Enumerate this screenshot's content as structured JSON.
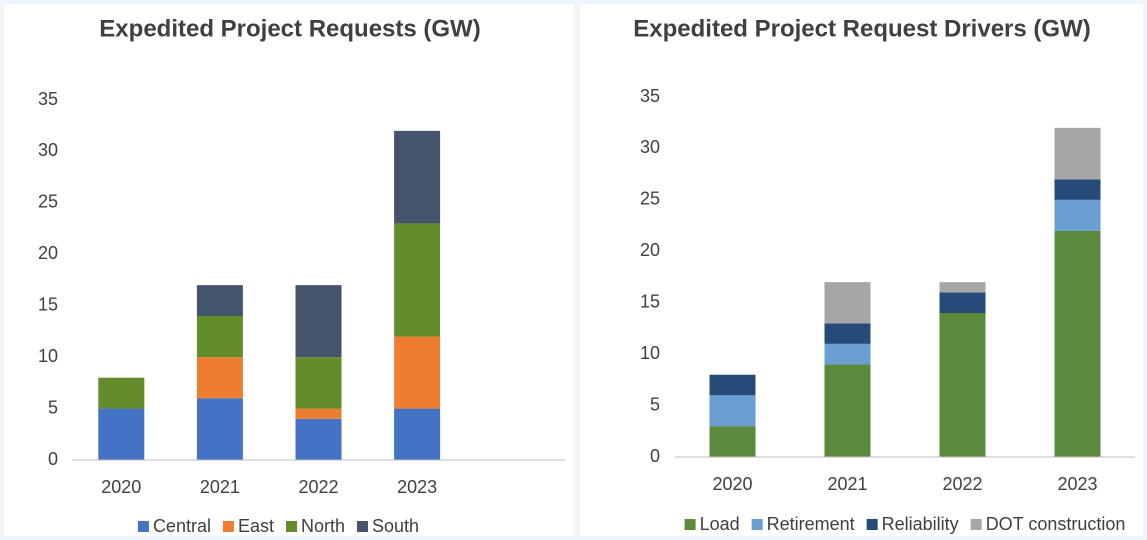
{
  "chart_data": [
    {
      "type": "bar",
      "stacked": true,
      "title": "Expedited Project Requests (GW)",
      "categories": [
        "2020",
        "2021",
        "2022",
        "2023",
        null
      ],
      "series": [
        {
          "name": "Central",
          "color": "#4472c4",
          "values": [
            5,
            6,
            4,
            5,
            null
          ]
        },
        {
          "name": "East",
          "color": "#ed7d31",
          "values": [
            0,
            4,
            1,
            7,
            null
          ]
        },
        {
          "name": "North",
          "color": "#638c2b",
          "values": [
            3,
            4,
            5,
            11,
            null
          ]
        },
        {
          "name": "South",
          "color": "#44546a",
          "values": [
            0,
            3,
            7,
            9,
            null
          ]
        }
      ],
      "ylim": [
        0,
        35
      ],
      "yticks": [
        0,
        5,
        10,
        15,
        20,
        25,
        30,
        35
      ],
      "grid": false,
      "legend": "bottom"
    },
    {
      "type": "bar",
      "stacked": true,
      "title": "Expedited Project Request Drivers (GW)",
      "categories": [
        "2020",
        "2021",
        "2022",
        "2023"
      ],
      "series": [
        {
          "name": "Load",
          "color": "#5b8a3c",
          "values": [
            3,
            9,
            14,
            22
          ]
        },
        {
          "name": "Retirement",
          "color": "#6a9fd4",
          "values": [
            3,
            2,
            0,
            3
          ]
        },
        {
          "name": "Reliability",
          "color": "#264b78",
          "values": [
            2,
            2,
            2,
            2
          ]
        },
        {
          "name": "DOT construction",
          "color": "#a6a6a6",
          "values": [
            0,
            4,
            1,
            5
          ]
        }
      ],
      "ylim": [
        0,
        35
      ],
      "yticks": [
        0,
        5,
        10,
        15,
        20,
        25,
        30,
        35
      ],
      "grid": false,
      "legend": "bottom"
    }
  ]
}
